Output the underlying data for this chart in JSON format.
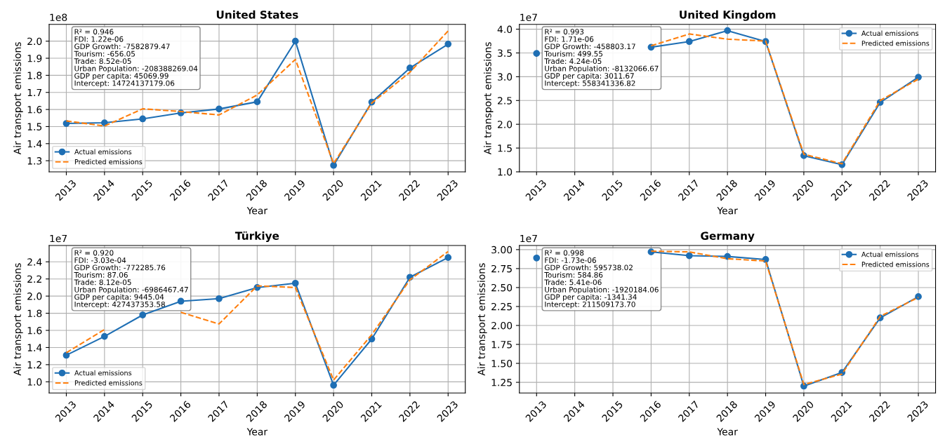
{
  "chart_data": [
    {
      "type": "line",
      "title": "United States",
      "xlabel": "Year",
      "ylabel": "Air transport emissions",
      "categories": [
        "2013",
        "2014",
        "2015",
        "2016",
        "2017",
        "2018",
        "2019",
        "2020",
        "2021",
        "2022",
        "2023"
      ],
      "ylim": [
        1.235,
        2.098
      ],
      "yticks": [
        1.3,
        1.4,
        1.5,
        1.6,
        1.7,
        1.8,
        1.9,
        {
          "value": 2,
          "label": "2.0"
        }
      ],
      "grid": true,
      "legend": "bottom left",
      "series": [
        {
          "name": "Actual emissions",
          "color": "#1f6fb4",
          "marker": "circle",
          "line_style": "solid",
          "values": [
            1.518,
            1.522,
            1.545,
            1.58,
            1.603,
            1.645,
            2.0,
            1.273,
            1.643,
            1.843,
            1.983
          ]
        },
        {
          "name": "Predicted emissions",
          "color": "#ff7f0e",
          "marker": "none",
          "line_style": "dashed",
          "values": [
            1.533,
            1.503,
            1.604,
            1.588,
            1.568,
            1.685,
            1.893,
            1.283,
            1.638,
            1.818,
            2.06
          ]
        }
      ],
      "annotations": [
        "1e8",
        "R² = 0.946\nFDI: 1.22e-06\nGDP Growth: -7582879.47\nTourism: -656.05\nTrade: 8.52e-05\nUrban Population: -208388269.04\nGDP per capita: 45069.99\nIntercept: 14724137179.06"
      ]
    },
    {
      "type": "line",
      "title": "United Kingdom",
      "xlabel": "Year",
      "ylabel": "Air transport emissions",
      "categories": [
        "2013",
        "2014",
        "2015",
        "2016",
        "2017",
        "2018",
        "2019",
        "2020",
        "2021",
        "2022",
        "2023"
      ],
      "ylim": [
        1.0,
        4.1
      ],
      "yticks": [
        {
          "value": 1,
          "label": "1.0"
        },
        1.5,
        {
          "value": 2,
          "label": "2.0"
        },
        2.5,
        {
          "value": 3,
          "label": "3.0"
        },
        3.5,
        {
          "value": 4,
          "label": "4.0"
        }
      ],
      "grid": true,
      "legend": "top right",
      "series": [
        {
          "name": "Actual emissions",
          "color": "#1f6fb4",
          "marker": "circle",
          "line_style": "solid",
          "values": [
            3.49,
            null,
            null,
            3.62,
            3.74,
            3.97,
            3.74,
            1.34,
            1.15,
            2.46,
            2.99
          ]
        },
        {
          "name": "Predicted emissions",
          "color": "#ff7f0e",
          "marker": "none",
          "line_style": "dashed",
          "values": [
            null,
            null,
            null,
            3.65,
            3.9,
            3.79,
            3.75,
            1.37,
            1.17,
            2.5,
            2.95
          ]
        }
      ],
      "annotations": [
        "1e7",
        "R² = 0.993\nFDI: 1.71e-06\nGDP Growth: -458803.17\nTourism: 499.55\nTrade: 4.24e-05\nUrban Population: -8132066.67\nGDP per capita: 3011.67\nIntercept: 558341336.82"
      ]
    },
    {
      "type": "line",
      "title": "Türkiye",
      "xlabel": "Year",
      "ylabel": "Air transport emissions",
      "categories": [
        "2013",
        "2014",
        "2015",
        "2016",
        "2017",
        "2018",
        "2019",
        "2020",
        "2021",
        "2022",
        "2023"
      ],
      "ylim": [
        0.87,
        2.59
      ],
      "yticks": [
        {
          "value": 1,
          "label": "1.0"
        },
        1.2,
        1.4,
        1.6,
        1.8,
        {
          "value": 2,
          "label": "2.0"
        },
        2.2,
        2.4
      ],
      "grid": true,
      "legend": "bottom left",
      "series": [
        {
          "name": "Actual emissions",
          "color": "#1f6fb4",
          "marker": "circle",
          "line_style": "solid",
          "values": [
            1.31,
            1.53,
            1.78,
            1.94,
            1.97,
            2.1,
            2.15,
            0.96,
            1.5,
            2.22,
            2.45
          ]
        },
        {
          "name": "Predicted emissions",
          "color": "#ff7f0e",
          "marker": "none",
          "line_style": "dashed",
          "values": [
            1.34,
            1.61,
            null,
            1.81,
            1.675,
            2.12,
            2.1,
            1.02,
            1.55,
            2.19,
            2.52
          ]
        }
      ],
      "annotations": [
        "1e7",
        "R² = 0.920\nFDI: -3.03e-04\nGDP Growth: -772285.76\nTourism: 87.06\nTrade: 8.12e-05\nUrban Population: -6986467.47\nGDP per capita: 9445.04\nIntercept: 427437353.58"
      ]
    },
    {
      "type": "line",
      "title": "Germany",
      "xlabel": "Year",
      "ylabel": "Air transport emissions",
      "categories": [
        "2013",
        "2014",
        "2015",
        "2016",
        "2017",
        "2018",
        "2019",
        "2020",
        "2021",
        "2022",
        "2023"
      ],
      "ylim": [
        1.11,
        3.054
      ],
      "yticks": [
        {
          "value": 1.25,
          "label": "1.25"
        },
        {
          "value": 1.5,
          "label": "1.50"
        },
        {
          "value": 1.75,
          "label": "1.75"
        },
        {
          "value": 2.0,
          "label": "2.00"
        },
        {
          "value": 2.25,
          "label": "2.25"
        },
        {
          "value": 2.5,
          "label": "2.50"
        },
        {
          "value": 2.75,
          "label": "2.75"
        },
        {
          "value": 3.0,
          "label": "3.00"
        }
      ],
      "grid": true,
      "legend": "top right",
      "series": [
        {
          "name": "Actual emissions",
          "color": "#1f6fb4",
          "marker": "circle",
          "line_style": "solid",
          "values": [
            2.89,
            null,
            null,
            2.97,
            2.92,
            2.91,
            2.87,
            1.2,
            1.38,
            2.1,
            2.38
          ]
        },
        {
          "name": "Predicted emissions",
          "color": "#ff7f0e",
          "marker": "none",
          "line_style": "dashed",
          "values": [
            null,
            null,
            null,
            2.98,
            2.97,
            2.88,
            2.85,
            1.22,
            1.36,
            2.12,
            2.37
          ]
        }
      ],
      "annotations": [
        "1e7",
        "R² = 0.998\nFDI: -1.73e-06\nGDP Growth: 595738.02\nTourism: 584.86\nTrade: 5.41e-06\nUrban Population: -1920184.06\nGDP per capita: -1341.34\nIntercept: 211509173.70"
      ]
    }
  ]
}
